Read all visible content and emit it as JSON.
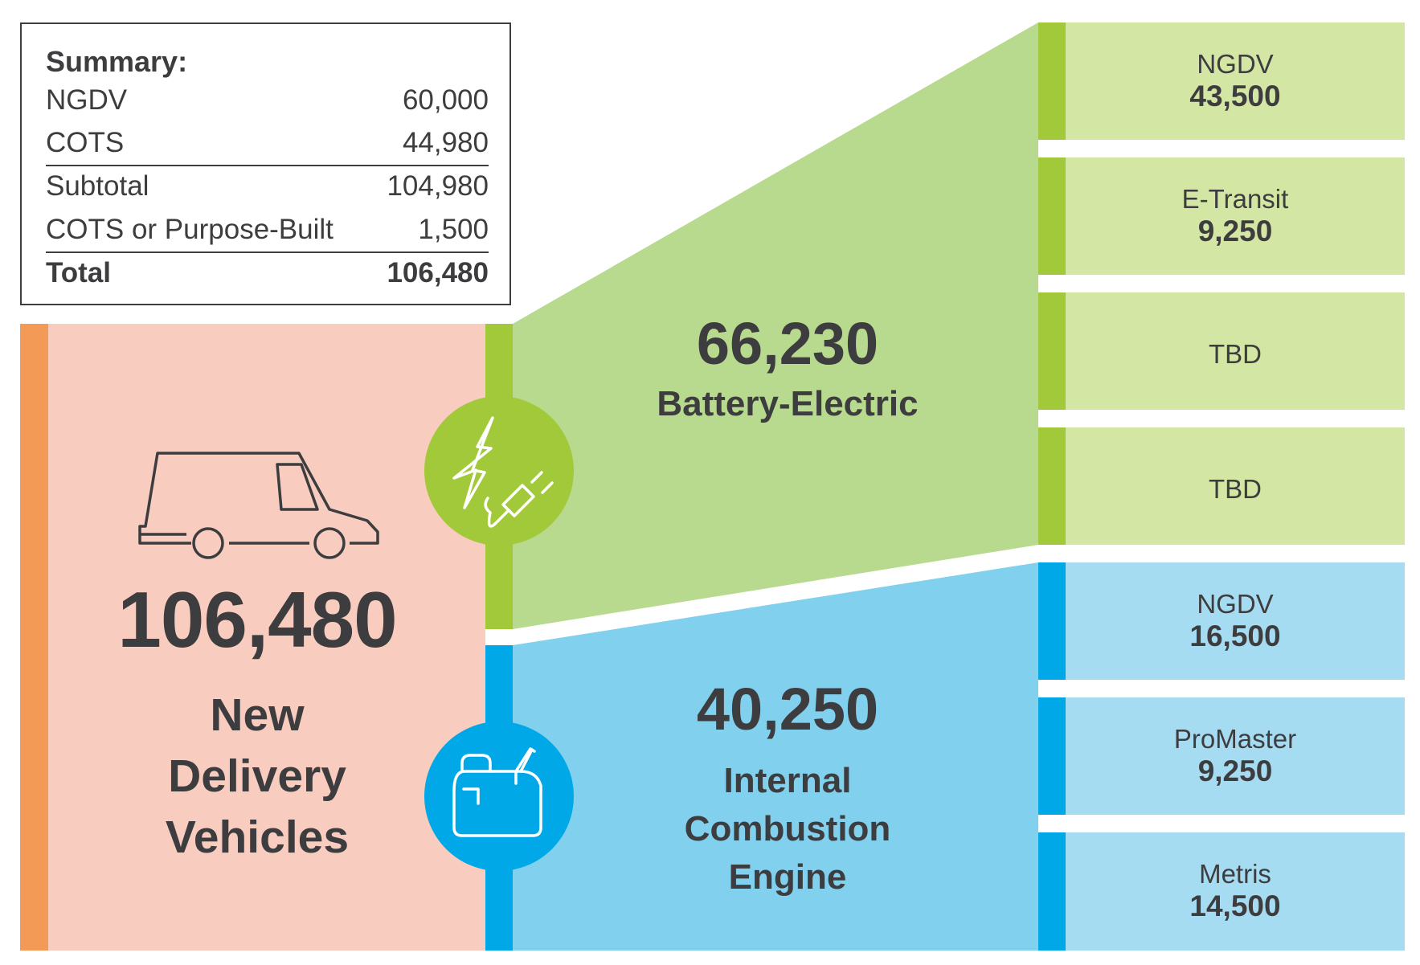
{
  "summary": {
    "title": "Summary:",
    "rows": [
      {
        "label": "NGDV",
        "value": "60,000"
      },
      {
        "label": "COTS",
        "value": "44,980"
      },
      {
        "label": "Subtotal",
        "value": "104,980"
      },
      {
        "label": "COTS or Purpose-Built",
        "value": "1,500"
      },
      {
        "label": "Total",
        "value": "106,480"
      }
    ]
  },
  "total": {
    "value": "106,480",
    "caption": [
      "New",
      "Delivery",
      "Vehicles"
    ]
  },
  "battery_electric": {
    "value": "66,230",
    "caption": "Battery-Electric",
    "items": [
      {
        "name": "NGDV",
        "value": "43,500"
      },
      {
        "name": "E-Transit",
        "value": "9,250"
      },
      {
        "name": "TBD",
        "value": ""
      },
      {
        "name": "TBD",
        "value": ""
      }
    ]
  },
  "internal_combustion": {
    "value": "40,250",
    "caption": [
      "Internal",
      "Combustion",
      "Engine"
    ],
    "items": [
      {
        "name": "NGDV",
        "value": "16,500"
      },
      {
        "name": "ProMaster",
        "value": "9,250"
      },
      {
        "name": "Metris",
        "value": "14,500"
      }
    ]
  },
  "colors": {
    "text": "#3d3d3f",
    "orange_bar": "#f39a56",
    "pink_panel": "#f8cdbf",
    "green_bar": "#a2c93a",
    "green_panel": "#b7da8e",
    "green_light": "#d3e6a3",
    "blue_bar": "#00a8e8",
    "blue_panel": "#80d0ee",
    "blue_light": "#a6dcf1"
  },
  "icons": [
    "delivery-van-icon",
    "electric-plug-icon",
    "fuel-can-icon"
  ]
}
